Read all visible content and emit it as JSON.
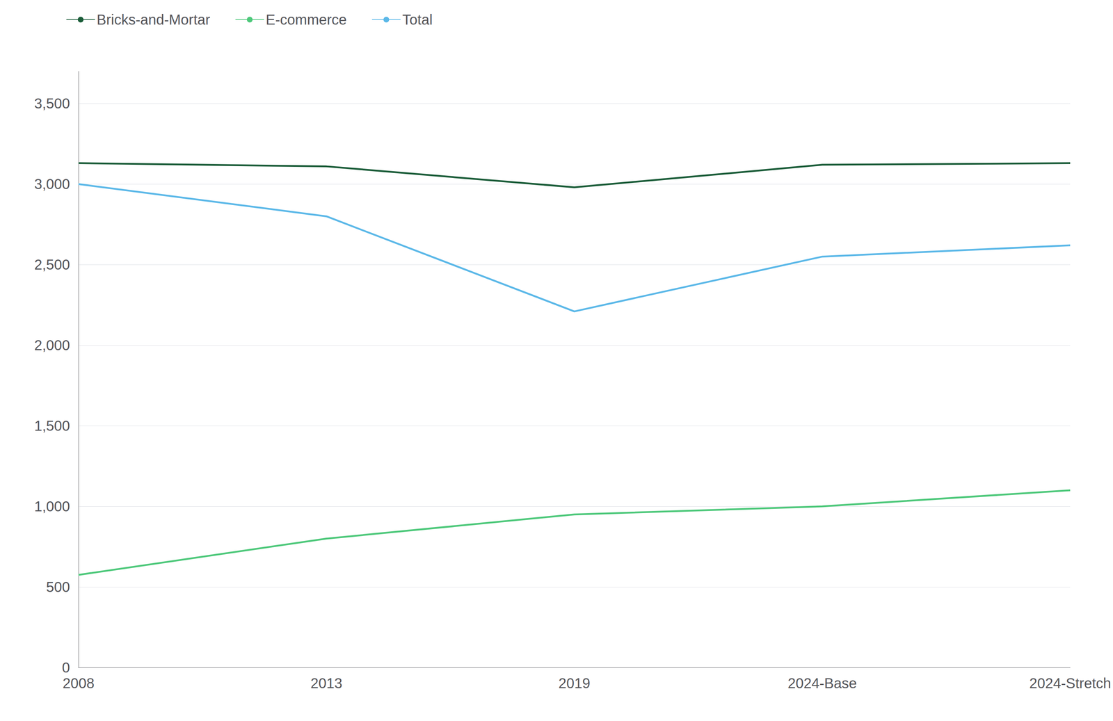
{
  "chart_data": {
    "type": "line",
    "categories": [
      "2008",
      "2013",
      "2019",
      "2024-Base",
      "2024-Stretch"
    ],
    "series": [
      {
        "name": "Bricks-and-Mortar",
        "color": "#1a5c38",
        "values": [
          3130,
          3110,
          2980,
          3120,
          3130
        ]
      },
      {
        "name": "E-commerce",
        "color": "#4dc87a",
        "values": [
          575,
          800,
          950,
          1000,
          1100
        ]
      },
      {
        "name": "Total",
        "color": "#5bb8e8",
        "values": [
          3000,
          2800,
          2210,
          2550,
          2620
        ]
      }
    ],
    "ylim": [
      0,
      3700
    ],
    "yticks": [
      0,
      500,
      {
        "value": 1000,
        "label": "1,000"
      },
      {
        "value": 1500,
        "label": "1,500"
      },
      {
        "value": 2000,
        "label": "2,000"
      },
      {
        "value": 2500,
        "label": "2,500"
      },
      {
        "value": 3000,
        "label": "3,000"
      },
      {
        "value": 3500,
        "label": "3,500"
      }
    ],
    "grid": true,
    "legend": "upper left"
  }
}
